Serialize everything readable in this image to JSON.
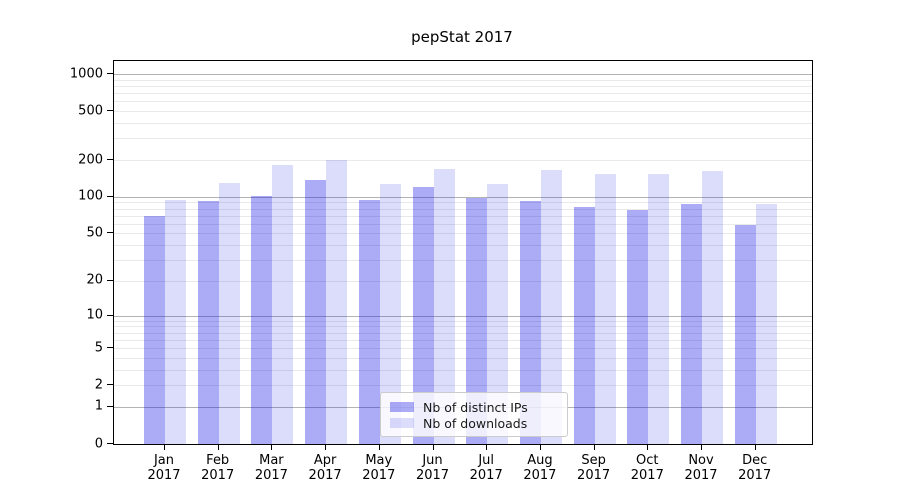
{
  "figure": {
    "background": "#ffffff"
  },
  "chart_data": {
    "type": "bar",
    "title": "pepStat 2017",
    "categories": [
      "Jan",
      "Feb",
      "Mar",
      "Apr",
      "May",
      "Jun",
      "Jul",
      "Aug",
      "Sep",
      "Oct",
      "Nov",
      "Dec"
    ],
    "x_tick_second_line": "2017",
    "series": [
      {
        "name": "Nb of distinct IPs",
        "color": "rgba(10,10,230,0.34)",
        "color_on_white": "#a9a9f7",
        "values": [
          70,
          92,
          101,
          137,
          94,
          120,
          98,
          93,
          82,
          78,
          87,
          59
        ]
      },
      {
        "name": "Nb of downloads",
        "color": "rgba(10,10,230,0.14)",
        "color_on_white": "#dcdcf8",
        "values": [
          95,
          131,
          181,
          200,
          127,
          168,
          127,
          166,
          153,
          153,
          164,
          87
        ]
      }
    ],
    "y_ticks": [
      0,
      1,
      2,
      5,
      10,
      20,
      50,
      100,
      200,
      500,
      1000
    ],
    "y_scale": "log(value+1)",
    "ylim": [
      0,
      1275
    ],
    "xlabel": "",
    "ylabel": "",
    "grid": {
      "on": true,
      "major_at": [
        1,
        10,
        100,
        1000
      ],
      "major_color": "#b3b3b3",
      "minor_color": "#e9e9e9"
    },
    "legend": {
      "position": "lower center",
      "frame": true
    },
    "axis_color": "#000000"
  }
}
